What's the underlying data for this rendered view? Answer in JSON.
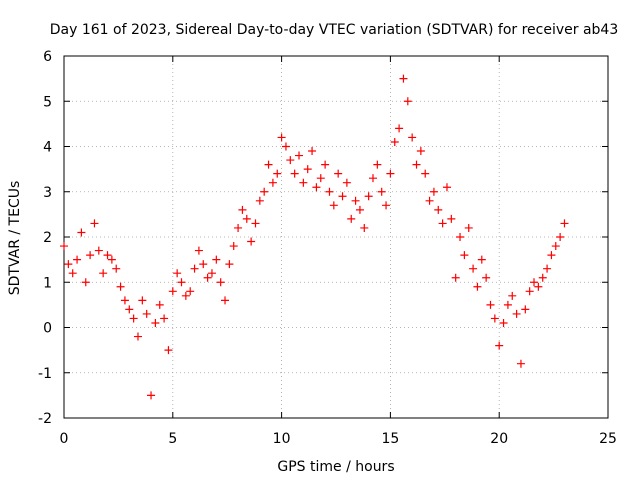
{
  "chart_data": {
    "type": "scatter",
    "title": "Day 161 of 2023, Sidereal Day-to-day VTEC variation (SDTVAR) for receiver ab43",
    "xlabel": "GPS time / hours",
    "ylabel": "SDTVAR / TECUs",
    "xlim": [
      0,
      25
    ],
    "ylim": [
      -2,
      6
    ],
    "x_ticks": [
      "0",
      "5",
      "10",
      "15",
      "20",
      "25"
    ],
    "y_ticks": [
      "-2",
      "-1",
      "0",
      "1",
      "2",
      "3",
      "4",
      "5",
      "6"
    ],
    "grid": true,
    "marker": "+",
    "color": "#ff0000",
    "series": [
      {
        "name": "SDTVAR",
        "x": [
          0.0,
          0.2,
          0.4,
          0.6,
          0.8,
          1.0,
          1.2,
          1.4,
          1.6,
          1.8,
          2.0,
          2.2,
          2.4,
          2.6,
          2.8,
          3.0,
          3.2,
          3.4,
          3.6,
          3.8,
          4.0,
          4.2,
          4.4,
          4.6,
          4.8,
          5.0,
          5.2,
          5.4,
          5.6,
          5.8,
          6.0,
          6.2,
          6.4,
          6.6,
          6.8,
          7.0,
          7.2,
          7.4,
          7.6,
          7.8,
          8.0,
          8.2,
          8.4,
          8.6,
          8.8,
          9.0,
          9.2,
          9.4,
          9.6,
          9.8,
          10.0,
          10.2,
          10.4,
          10.6,
          10.8,
          11.0,
          11.2,
          11.4,
          11.6,
          11.8,
          12.0,
          12.2,
          12.4,
          12.6,
          12.8,
          13.0,
          13.2,
          13.4,
          13.6,
          13.8,
          14.0,
          14.2,
          14.4,
          14.6,
          14.8,
          15.0,
          15.2,
          15.4,
          15.6,
          15.8,
          16.0,
          16.2,
          16.4,
          16.6,
          16.8,
          17.0,
          17.2,
          17.4,
          17.6,
          17.8,
          18.0,
          18.2,
          18.4,
          18.6,
          18.8,
          19.0,
          19.2,
          19.4,
          19.6,
          19.8,
          20.0,
          20.2,
          20.4,
          20.6,
          20.8,
          21.0,
          21.2,
          21.4,
          21.6,
          21.8,
          22.0,
          22.2,
          22.4,
          22.6,
          22.8,
          23.0
        ],
        "y": [
          1.8,
          1.4,
          1.2,
          1.5,
          2.1,
          1.0,
          1.6,
          2.3,
          1.7,
          1.2,
          1.6,
          1.5,
          1.3,
          0.9,
          0.6,
          0.4,
          0.2,
          -0.2,
          0.6,
          0.3,
          -1.5,
          0.1,
          0.5,
          0.2,
          -0.5,
          0.8,
          1.2,
          1.0,
          0.7,
          0.8,
          1.3,
          1.7,
          1.4,
          1.1,
          1.2,
          1.5,
          1.0,
          0.6,
          1.4,
          1.8,
          2.2,
          2.6,
          2.4,
          1.9,
          2.3,
          2.8,
          3.0,
          3.6,
          3.2,
          3.4,
          4.2,
          4.0,
          3.7,
          3.4,
          3.8,
          3.2,
          3.5,
          3.9,
          3.1,
          3.3,
          3.6,
          3.0,
          2.7,
          3.4,
          2.9,
          3.2,
          2.4,
          2.8,
          2.6,
          2.2,
          2.9,
          3.3,
          3.6,
          3.0,
          2.7,
          3.4,
          4.1,
          4.4,
          5.5,
          5.0,
          4.2,
          3.6,
          3.9,
          3.4,
          2.8,
          3.0,
          2.6,
          2.3,
          3.1,
          2.4,
          1.1,
          2.0,
          1.6,
          2.2,
          1.3,
          0.9,
          1.5,
          1.1,
          0.5,
          0.2,
          -0.4,
          0.1,
          0.5,
          0.7,
          0.3,
          -0.8,
          0.4,
          0.8,
          1.0,
          0.9,
          1.1,
          1.3,
          1.6,
          1.8,
          2.0,
          2.3
        ]
      }
    ]
  }
}
